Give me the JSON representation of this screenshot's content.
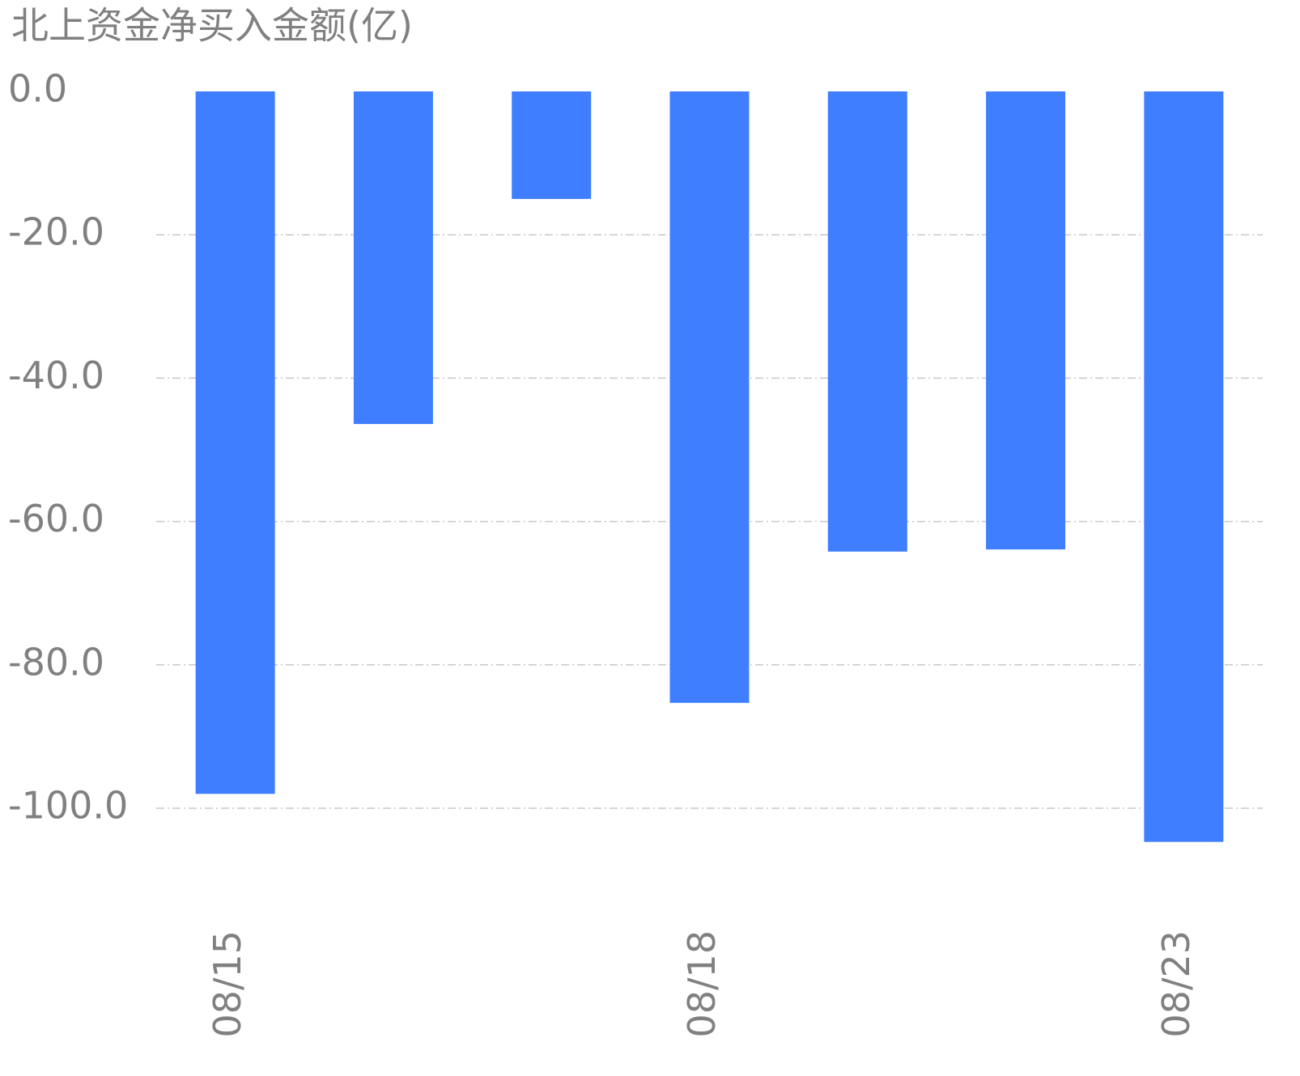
{
  "chart_data": {
    "type": "bar",
    "title": "北上资金净买入金额(亿)",
    "categories": [
      "08/15",
      null,
      null,
      "08/18",
      null,
      null,
      "08/23"
    ],
    "values": [
      -98.0,
      -46.4,
      -15.0,
      -85.3,
      -64.2,
      -63.9,
      -104.7
    ],
    "color": "#3f7fff",
    "ylim": [
      -105,
      0
    ],
    "yticks": [
      {
        "value": 0,
        "label": "0.0"
      },
      {
        "value": -20,
        "label": "-20.0"
      },
      {
        "value": -40,
        "label": "-40.0"
      },
      {
        "value": -60,
        "label": "-60.0"
      },
      {
        "value": -80,
        "label": "-80.0"
      },
      {
        "value": -100,
        "label": "-100.0"
      }
    ],
    "grid": true
  }
}
